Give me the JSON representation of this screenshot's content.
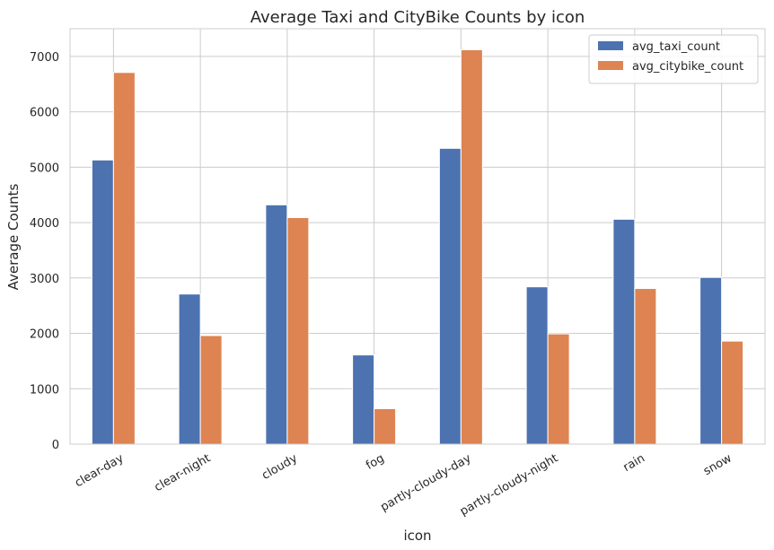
{
  "chart_data": {
    "type": "bar",
    "title": "Average Taxi and CityBike Counts by icon",
    "xlabel": "icon",
    "ylabel": "Average Counts",
    "categories": [
      "clear-day",
      "clear-night",
      "cloudy",
      "fog",
      "partly-cloudy-day",
      "partly-cloudy-night",
      "rain",
      "snow"
    ],
    "series": [
      {
        "name": "avg_taxi_count",
        "color": "#4c72b0",
        "values": [
          5130,
          2710,
          4320,
          1610,
          5340,
          2840,
          4060,
          3010
        ]
      },
      {
        "name": "avg_citybike_count",
        "color": "#dd8452",
        "values": [
          6710,
          1960,
          4090,
          640,
          7120,
          1990,
          2810,
          1860
        ]
      }
    ],
    "ylim": [
      0,
      7500
    ],
    "yticks": [
      0,
      1000,
      2000,
      3000,
      4000,
      5000,
      6000,
      7000
    ],
    "grid": true,
    "legend_position": "top-right"
  }
}
